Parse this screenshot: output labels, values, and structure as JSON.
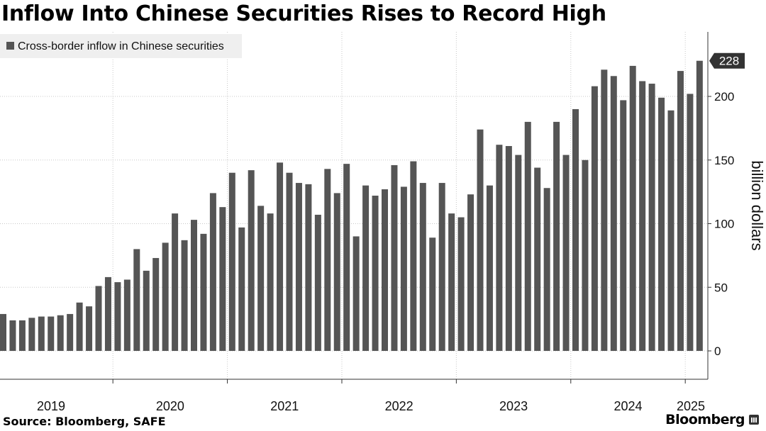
{
  "title": "Inflow Into Chinese Securities Rises to Record High",
  "source": "Source: Bloomberg, SAFE",
  "brand": "Bloomberg",
  "chart_data": {
    "type": "bar",
    "title": "Inflow Into Chinese Securities Rises to Record High",
    "legend": "Cross-border inflow in Chinese securities",
    "ylabel": "billion dollars",
    "xlabel": "",
    "ylim": [
      -22,
      250
    ],
    "yticks": [
      0,
      50,
      100,
      150,
      200
    ],
    "xticks": [
      "2019",
      "2020",
      "2021",
      "2022",
      "2023",
      "2024",
      "2025"
    ],
    "last_value_label": "228",
    "start": "2019-01",
    "bar_color": "#555555",
    "values": [
      29,
      24,
      24,
      26,
      27,
      27,
      28,
      29,
      38,
      35,
      51,
      58,
      54,
      56,
      80,
      63,
      73,
      85,
      108,
      87,
      103,
      92,
      124,
      113,
      140,
      97,
      142,
      114,
      108,
      148,
      140,
      132,
      131,
      107,
      143,
      124,
      147,
      90,
      130,
      122,
      127,
      146,
      129,
      149,
      132,
      89,
      132,
      108,
      105,
      123,
      174,
      130,
      162,
      161,
      154,
      180,
      144,
      128,
      180,
      154,
      190,
      150,
      208,
      221,
      216,
      197,
      224,
      212,
      210,
      199,
      189,
      220,
      202,
      228
    ]
  }
}
